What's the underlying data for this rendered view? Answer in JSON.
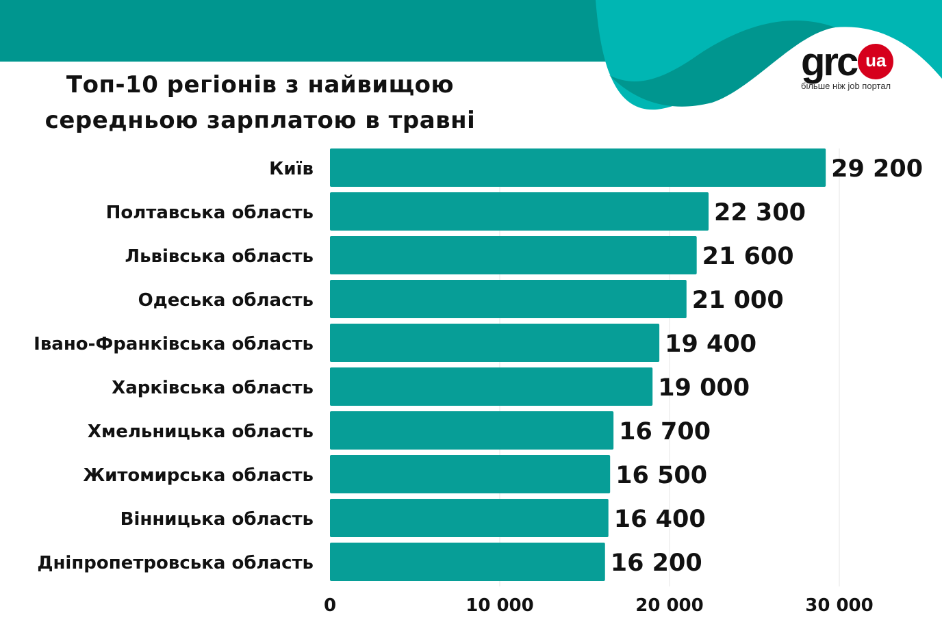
{
  "header": {
    "logo_text": "grc",
    "logo_badge": "ua",
    "tagline": "більше ніж job портал"
  },
  "colors": {
    "bar": "#079e97",
    "header_dark": "#00968f",
    "header_light": "#00b6b3",
    "badge": "#d6001c"
  },
  "chart_data": {
    "type": "bar",
    "orientation": "horizontal",
    "title_line1": "Топ-10 регіонів з найвищою",
    "title_line2": "середньою зарплатою в травні",
    "categories": [
      "Київ",
      "Полтавська область",
      "Львівська область",
      "Одеська область",
      "Івано-Франківська область",
      "Харківська область",
      "Хмельницька область",
      "Житомирська область",
      "Вінницька область",
      "Дніпропетровська область"
    ],
    "values": [
      29200,
      22300,
      21600,
      21000,
      19400,
      19000,
      16700,
      16500,
      16400,
      16200
    ],
    "value_labels": [
      "29 200",
      "22 300",
      "21 600",
      "21 000",
      "19 400",
      "19 000",
      "16 700",
      "16 500",
      "16 400",
      "16 200"
    ],
    "xlim": [
      0,
      35000
    ],
    "xticks": [
      0,
      10000,
      20000,
      30000
    ],
    "xtick_labels": [
      "0",
      "10 000",
      "20 000",
      "30 000"
    ],
    "grid": true
  }
}
